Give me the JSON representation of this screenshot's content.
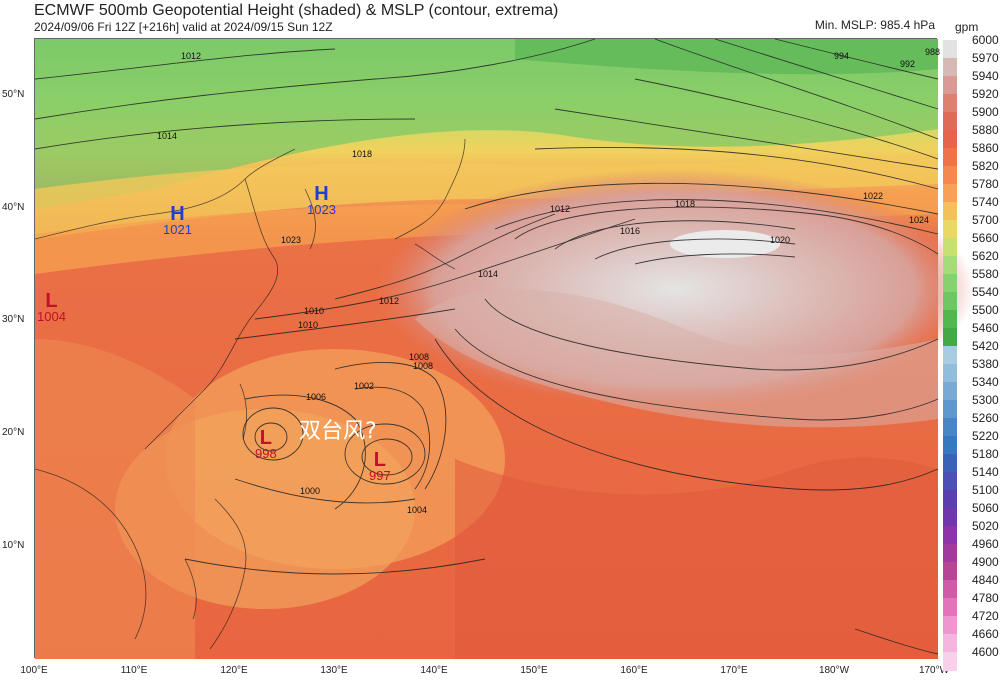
{
  "title": "ECMWF 500mb Geopotential Height (shaded) & MSLP (contour, extrema)",
  "subtitle": "2024/09/06 Fri 12Z [+216h] valid at 2024/09/15 Sun 12Z",
  "min_mslp": "Min. MSLP: 985.4 hPa",
  "colorbar": {
    "unit": "gpm",
    "ticks": [
      "6000",
      "5970",
      "5940",
      "5920",
      "5900",
      "5880",
      "5860",
      "5820",
      "5780",
      "5740",
      "5700",
      "5660",
      "5620",
      "5580",
      "5540",
      "5500",
      "5460",
      "5420",
      "5380",
      "5340",
      "5300",
      "5260",
      "5220",
      "5180",
      "5140",
      "5100",
      "5060",
      "5020",
      "4960",
      "4900",
      "4840",
      "4780",
      "4720",
      "4660",
      "4600"
    ],
    "colors": [
      "#e2e2e2",
      "#d6b8b4",
      "#d89a92",
      "#dc8070",
      "#e06a58",
      "#e8634b",
      "#f0724a",
      "#f48850",
      "#f6a058",
      "#f3c05a",
      "#e9d964",
      "#c8e070",
      "#a6dc78",
      "#88d070",
      "#6ec664",
      "#52b84e",
      "#44a844",
      "#a8cce0",
      "#92bcdc",
      "#78aad4",
      "#5e98cc",
      "#4886c4",
      "#3878be",
      "#3a62b8",
      "#4c50b6",
      "#5a3eb0",
      "#7036ac",
      "#8c34a8",
      "#a03a9e",
      "#b84496",
      "#d05aa8",
      "#e274bc",
      "#ee96ce",
      "#f4b6de",
      "#f8d0ea"
    ]
  },
  "map": {
    "lat_labels": [
      "50°N",
      "40°N",
      "30°N",
      "20°N",
      "10°N"
    ],
    "lon_labels": [
      "100°E",
      "110°E",
      "120°E",
      "130°E",
      "140°E",
      "150°E",
      "160°E",
      "170°E",
      "180°W",
      "170°W"
    ],
    "highs": [
      {
        "letter": "H",
        "value": "1021"
      },
      {
        "letter": "H",
        "value": "1023"
      }
    ],
    "lows": [
      {
        "letter": "L",
        "value": "1004"
      },
      {
        "letter": "L",
        "value": "998"
      },
      {
        "letter": "L",
        "value": "997"
      }
    ],
    "annotation": "双台风?",
    "isobar_labels": [
      "1000",
      "1004",
      "1006",
      "1008",
      "1010",
      "1012",
      "1014",
      "1016",
      "1018",
      "1020",
      "1022",
      "1024",
      "994",
      "992",
      "988",
      "1002",
      "1008",
      "1010",
      "1012",
      "1014",
      "1018",
      "1023",
      "1012"
    ]
  }
}
